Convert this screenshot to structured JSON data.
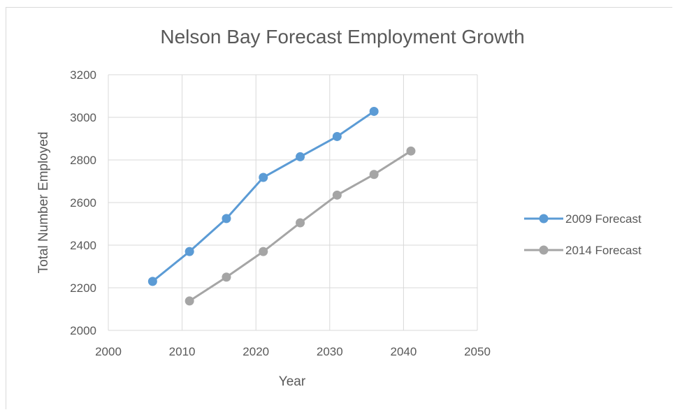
{
  "chart_data": {
    "type": "scatter",
    "title": "Nelson Bay Forecast Employment Growth",
    "xlabel": "Year",
    "ylabel": "Total Number Employed",
    "xlim": [
      2000,
      2050
    ],
    "ylim": [
      2000,
      3200
    ],
    "xticks": [
      2000,
      2010,
      2020,
      2030,
      2040,
      2050
    ],
    "yticks": [
      2000,
      2200,
      2400,
      2600,
      2800,
      3000,
      3200
    ],
    "grid": true,
    "legend_position": "right",
    "series": [
      {
        "name": "2009 Forecast",
        "color": "#5b9bd5",
        "x": [
          2006,
          2011,
          2016,
          2021,
          2026,
          2031,
          2036
        ],
        "y": [
          2230,
          2370,
          2525,
          2718,
          2815,
          2910,
          3028
        ]
      },
      {
        "name": "2014 Forecast",
        "color": "#a5a5a5",
        "x": [
          2011,
          2016,
          2021,
          2026,
          2031,
          2036,
          2041
        ],
        "y": [
          2138,
          2250,
          2370,
          2505,
          2635,
          2732,
          2842
        ]
      }
    ]
  }
}
